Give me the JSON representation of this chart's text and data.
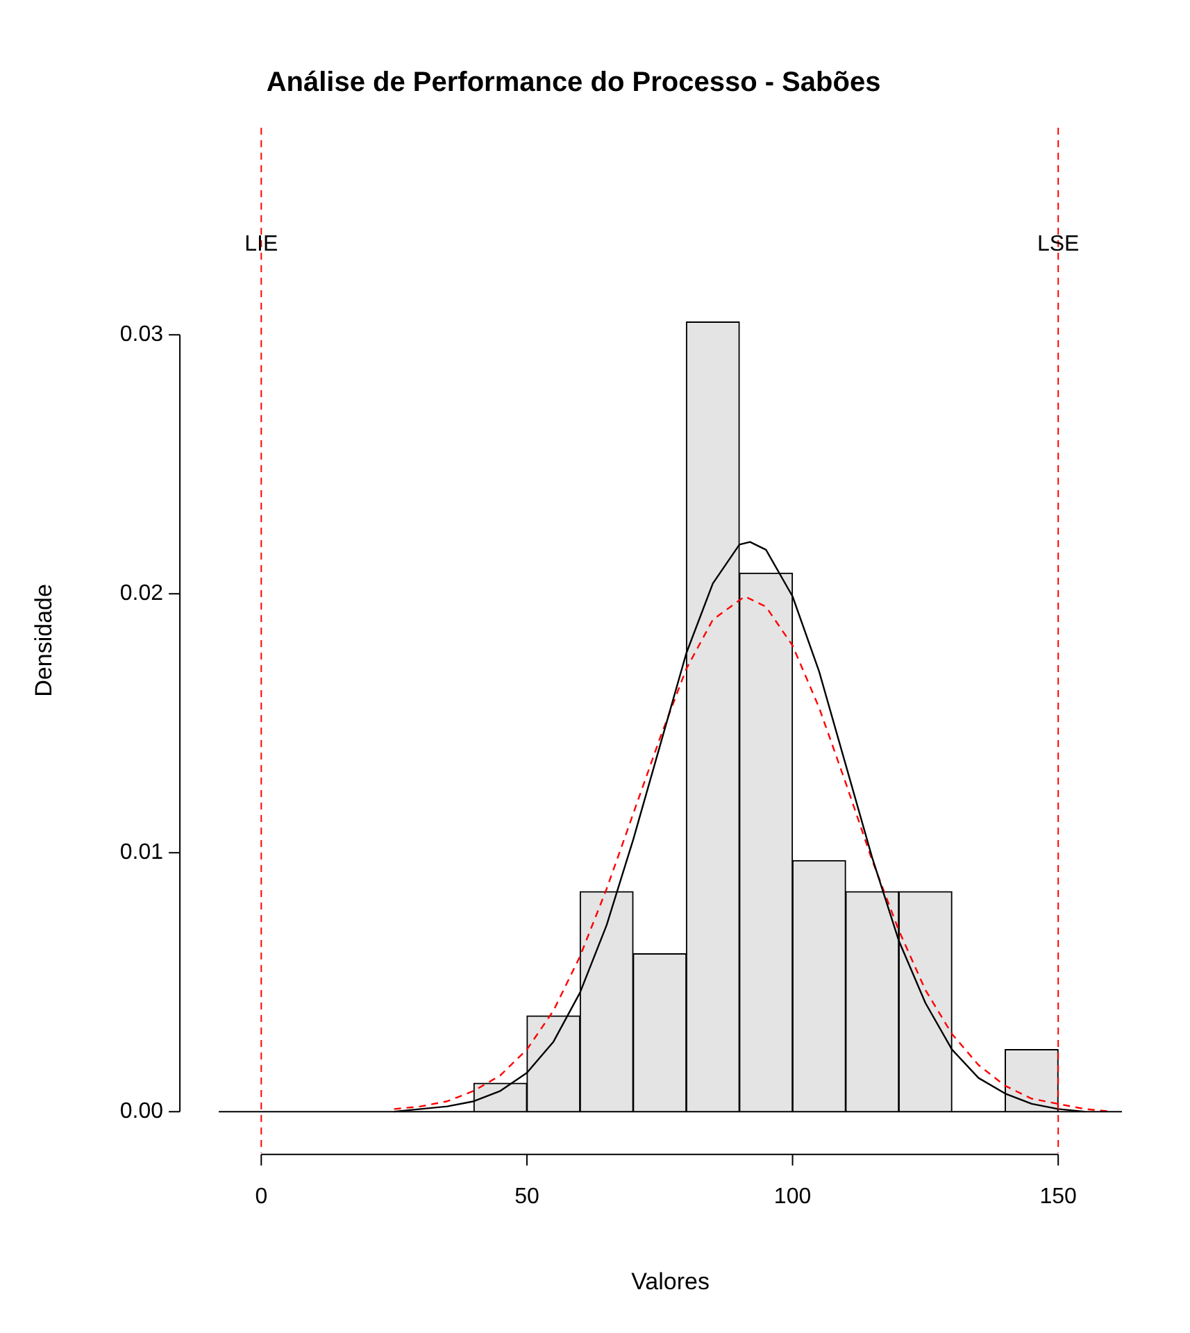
{
  "chart_data": {
    "type": "histogram",
    "title": "Análise de Performance do Processo - Sabões",
    "xlabel": "Valores",
    "ylabel": "Densidade",
    "bins": [
      40,
      50,
      60,
      70,
      80,
      90,
      100,
      110,
      120,
      130,
      140,
      150
    ],
    "values": [
      0.0011,
      0.0037,
      0.0085,
      0.0061,
      0.0305,
      0.0208,
      0.0097,
      0.0085,
      0.0085,
      0,
      0.0024
    ],
    "color": "#e4e4e4",
    "xlim": [
      -8,
      162
    ],
    "xticks": [
      0,
      50,
      100,
      150
    ],
    "ylim": [
      -0.0016,
      0.038
    ],
    "yticks": [
      {
        "value": 0,
        "label": "0.00"
      },
      {
        "value": 0.01,
        "label": "0.01"
      },
      {
        "value": 0.02,
        "label": "0.02"
      },
      {
        "value": 0.03,
        "label": "0.03"
      }
    ],
    "grid": false,
    "legend": false,
    "series": [
      {
        "type": "line",
        "color": "#000000",
        "line_style": "solid",
        "x": [
          25,
          30,
          35,
          40,
          45,
          50,
          55,
          60,
          65,
          70,
          75,
          80,
          85,
          90,
          92,
          95,
          100,
          105,
          110,
          115,
          120,
          125,
          130,
          135,
          140,
          145,
          150,
          155
        ],
        "values": [
          0.0,
          0.0001,
          0.0002,
          0.0004,
          0.0008,
          0.0015,
          0.0027,
          0.0046,
          0.0072,
          0.0105,
          0.0141,
          0.0177,
          0.0204,
          0.0219,
          0.022,
          0.0217,
          0.0199,
          0.017,
          0.0134,
          0.0098,
          0.0066,
          0.0042,
          0.0024,
          0.0013,
          0.0007,
          0.0003,
          0.0001,
          0.0
        ]
      },
      {
        "type": "line",
        "color": "#ff0000",
        "line_style": "dashed",
        "x": [
          25,
          30,
          35,
          40,
          45,
          50,
          55,
          60,
          65,
          70,
          75,
          80,
          85,
          91,
          95,
          100,
          105,
          110,
          115,
          120,
          125,
          130,
          135,
          140,
          145,
          150,
          155,
          160
        ],
        "values": [
          0.0001,
          0.0002,
          0.0004,
          0.0008,
          0.0014,
          0.0024,
          0.0039,
          0.006,
          0.0086,
          0.0115,
          0.0144,
          0.0171,
          0.019,
          0.0199,
          0.0195,
          0.018,
          0.0156,
          0.0127,
          0.0097,
          0.007,
          0.0047,
          0.003,
          0.0018,
          0.001,
          0.0005,
          0.0003,
          0.0001,
          0.0
        ]
      }
    ],
    "ref_lines": [
      {
        "axis": "x",
        "value": 0,
        "label": "LIE",
        "color": "#ff0000",
        "line_style": "dashed"
      },
      {
        "axis": "x",
        "value": 150,
        "label": "LSE",
        "color": "#ff0000",
        "line_style": "dashed"
      },
      {
        "axis": "y",
        "value": 0,
        "color": "#000000",
        "line_style": "solid"
      }
    ]
  }
}
